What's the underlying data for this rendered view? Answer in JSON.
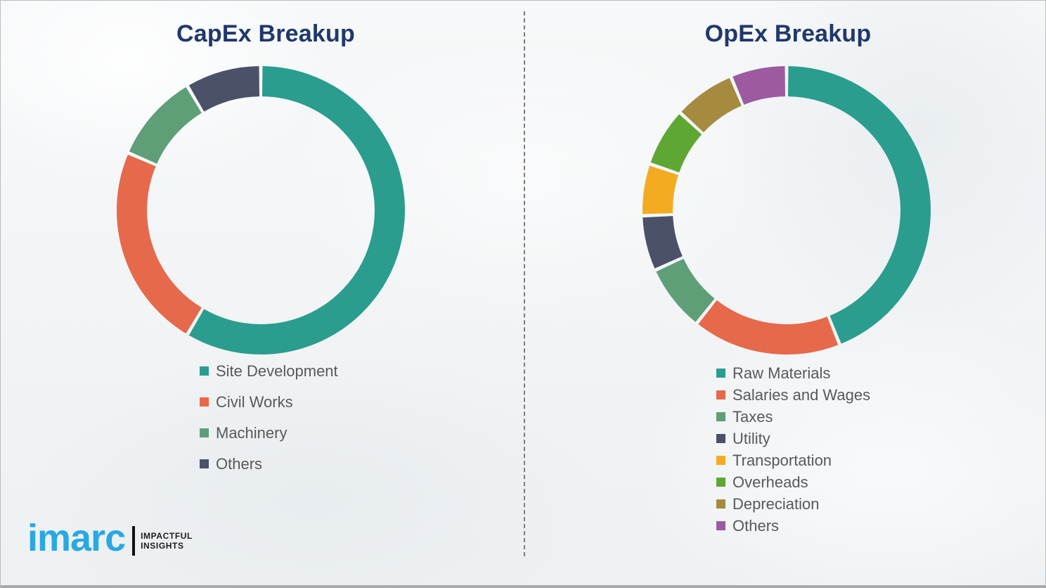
{
  "page": {
    "background_color": "#f2f4f5",
    "divider_style": "dashed-vertical",
    "border_color": "#a9a9a9"
  },
  "titles": {
    "left": "CapEx Breakup",
    "right": "OpEx Breakup",
    "color": "#20386b"
  },
  "chart_data": [
    {
      "type": "pie",
      "subtype": "donut",
      "title": "CapEx Breakup",
      "unit": "percent",
      "start_angle_deg": 0,
      "direction": "clockwise",
      "donut_hole_ratio": 0.79,
      "legend_position": "below-left",
      "segments": [
        {
          "label": "Site Development",
          "value": 58.5,
          "color": "#2a9d8f"
        },
        {
          "label": "Civil Works",
          "value": 23.0,
          "color": "#e5694a"
        },
        {
          "label": "Machinery",
          "value": 10.0,
          "color": "#5f9f78"
        },
        {
          "label": "Others",
          "value": 8.5,
          "color": "#4a5168"
        }
      ]
    },
    {
      "type": "pie",
      "subtype": "donut",
      "title": "OpEx Breakup",
      "unit": "percent",
      "start_angle_deg": 0,
      "direction": "clockwise",
      "donut_hole_ratio": 0.79,
      "legend_position": "below-left",
      "segments": [
        {
          "label": "Raw Materials",
          "value": 44.0,
          "color": "#2a9d8f"
        },
        {
          "label": "Salaries and Wages",
          "value": 16.7,
          "color": "#e5694a"
        },
        {
          "label": "Taxes",
          "value": 7.5,
          "color": "#5f9f78"
        },
        {
          "label": "Utility",
          "value": 6.2,
          "color": "#4a5168"
        },
        {
          "label": "Transportation",
          "value": 5.8,
          "color": "#f3ac21"
        },
        {
          "label": "Overheads",
          "value": 6.6,
          "color": "#5fa733"
        },
        {
          "label": "Depreciation",
          "value": 6.9,
          "color": "#a68a3f"
        },
        {
          "label": "Others",
          "value": 6.3,
          "color": "#9c5ba1"
        }
      ]
    }
  ],
  "logo": {
    "brand": "imarc",
    "brand_color": "#29a9e1",
    "tagline_line1": "IMPACTFUL",
    "tagline_line2": "INSIGHTS",
    "tagline_color": "#1b1b1b"
  }
}
